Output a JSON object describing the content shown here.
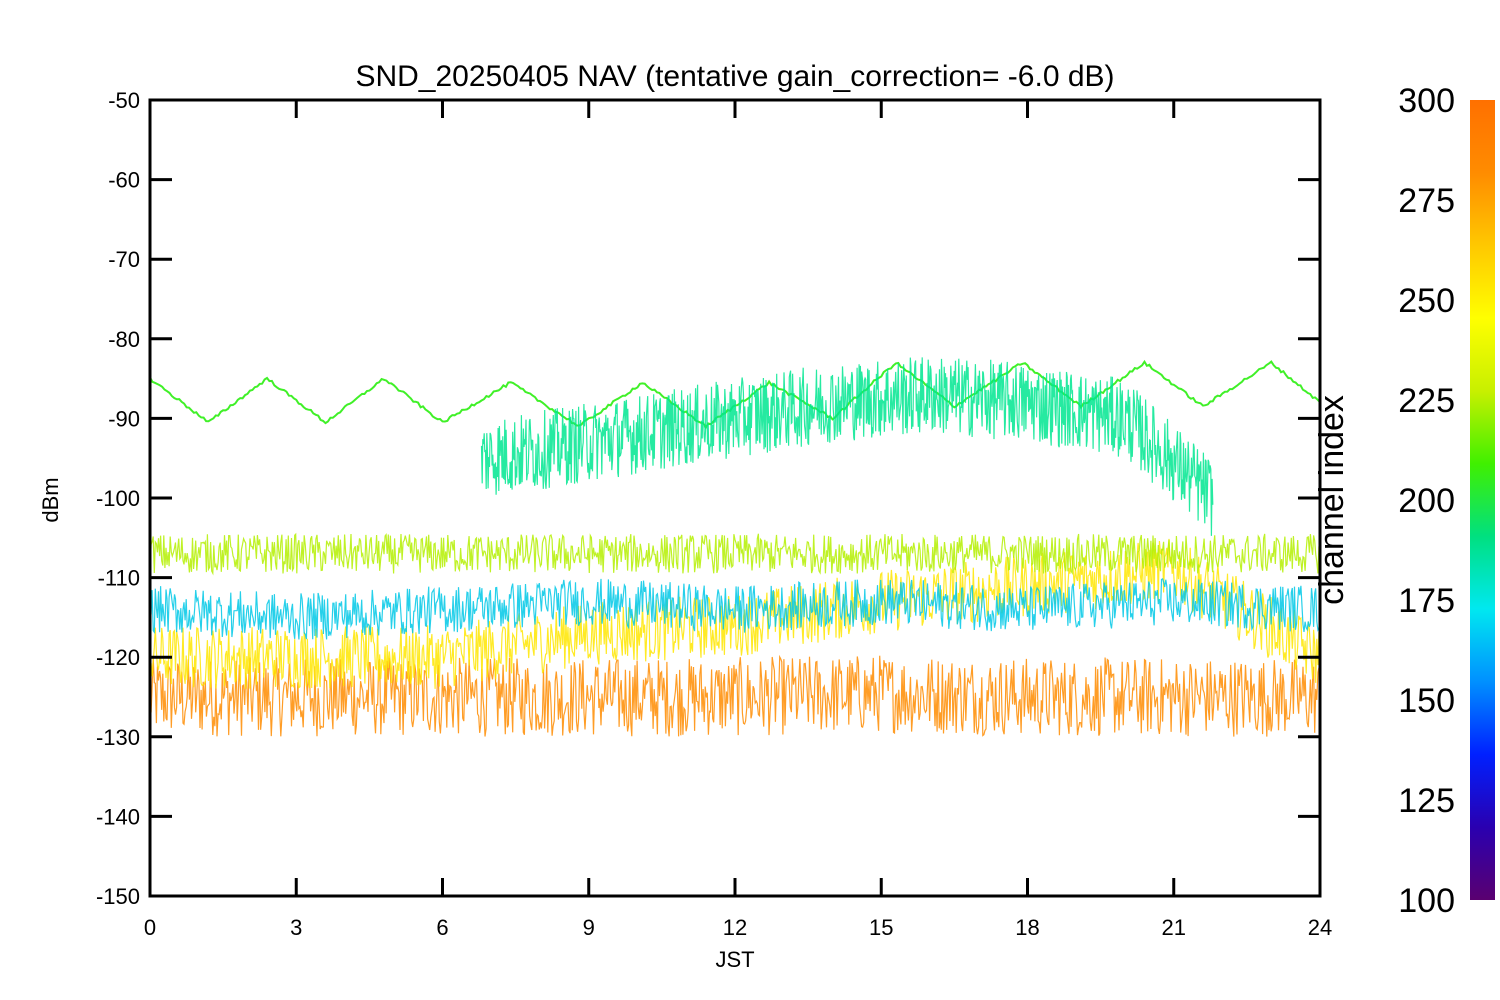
{
  "chart_data": {
    "type": "line",
    "title": "SND_20250405 NAV (tentative gain_correction= -6.0 dB)",
    "xlabel": "JST",
    "ylabel": "dBm",
    "xlim": [
      0,
      24
    ],
    "ylim": [
      -150,
      -50
    ],
    "xticks": [
      "0",
      "3",
      "6",
      "9",
      "12",
      "15",
      "18",
      "21",
      "24"
    ],
    "yticks": [
      "-50",
      "-60",
      "-70",
      "-80",
      "-90",
      "-100",
      "-110",
      "-120",
      "-130",
      "-140",
      "-150"
    ],
    "grid": false,
    "colorbar": {
      "label": "channel index",
      "range": [
        100,
        300
      ],
      "ticks": [
        "300",
        "275",
        "250",
        "225",
        "200",
        "175",
        "150",
        "125",
        "100"
      ],
      "colormap": [
        "#5a0070",
        "#2a00b0",
        "#0020ff",
        "#0090ff",
        "#00e8f0",
        "#00e080",
        "#40f000",
        "#c8f000",
        "#ffff00",
        "#ffc800",
        "#ff8c00",
        "#ff7000"
      ]
    },
    "series": [
      {
        "color": "#ff8c00",
        "x": [
          0,
          3,
          6,
          9,
          12,
          15,
          18,
          21,
          24
        ],
        "y": [
          -125,
          -125,
          -125,
          -125,
          -125,
          -124.5,
          -125,
          -125,
          -125
        ]
      },
      {
        "color": "#ffe600",
        "x": [
          0,
          3,
          6,
          9,
          12,
          15,
          18,
          21,
          24
        ],
        "y": [
          -120,
          -120,
          -120,
          -117,
          -116,
          -113,
          -111,
          -109,
          -120
        ]
      },
      {
        "color": "#b4f000",
        "x": [
          0,
          3,
          6,
          9,
          12,
          15,
          18,
          21,
          24
        ],
        "y": [
          -107,
          -107,
          -107,
          -107,
          -107,
          -107,
          -107,
          -107,
          -107
        ]
      },
      {
        "color": "#40f028",
        "x": [
          0,
          1.2,
          2.4,
          3.6,
          4.8,
          6,
          7.4,
          8.8,
          10.1,
          11.4,
          12.7,
          14,
          15.3,
          16.5,
          17.9,
          19.1,
          20.4,
          21.6,
          23,
          24
        ],
        "y": [
          -85,
          -90.5,
          -85,
          -90.5,
          -85,
          -90.5,
          -85.5,
          -91,
          -85.5,
          -91,
          -85.5,
          -90,
          -83,
          -88.5,
          -83,
          -88.5,
          -83,
          -88.5,
          -83,
          -88
        ]
      },
      {
        "color": "#00e690",
        "x": [
          6.8,
          8,
          10,
          12,
          14,
          16,
          18,
          20,
          21.8
        ],
        "y": [
          -95,
          -94,
          -92,
          -90,
          -88,
          -87,
          -88,
          -90,
          -100
        ]
      },
      {
        "color": "#00c8e6",
        "x": [
          0,
          3,
          6,
          9,
          12,
          15,
          18,
          21,
          24
        ],
        "y": [
          -114,
          -115,
          -114,
          -113,
          -114,
          -113,
          -114,
          -113,
          -114
        ]
      }
    ]
  }
}
